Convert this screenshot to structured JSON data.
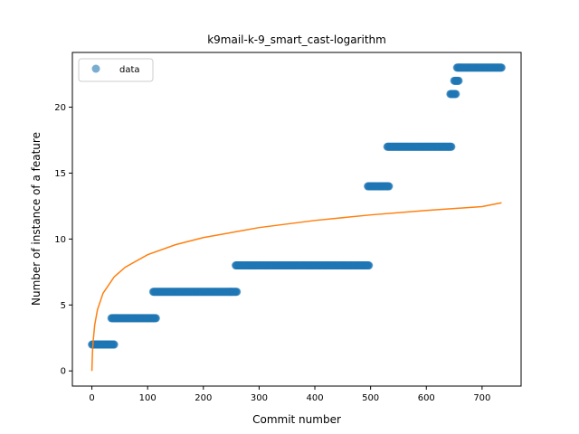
{
  "chart_data": {
    "type": "scatter",
    "title": "k9mail-k-9_smart_cast-logarithm",
    "xlabel": "Commit number",
    "ylabel": "Number of instance of a feature",
    "xlim": [
      -35,
      770
    ],
    "ylim": [
      -1.15,
      24.15
    ],
    "xticks": [
      0,
      100,
      200,
      300,
      400,
      500,
      600,
      700
    ],
    "yticks": [
      0,
      5,
      10,
      15,
      20
    ],
    "legend": {
      "position": "top-left",
      "entries": [
        "data"
      ]
    },
    "colors": {
      "data": "#1f77b4",
      "fit": "#ff7f0e"
    },
    "series": [
      {
        "name": "data",
        "kind": "scatter",
        "segments": [
          {
            "x_start": 0,
            "x_end": 40,
            "y": 2
          },
          {
            "x_start": 35,
            "x_end": 115,
            "y": 4
          },
          {
            "x_start": 110,
            "x_end": 260,
            "y": 6
          },
          {
            "x_start": 258,
            "x_end": 497,
            "y": 8
          },
          {
            "x_start": 495,
            "x_end": 533,
            "y": 14
          },
          {
            "x_start": 530,
            "x_end": 645,
            "y": 17
          },
          {
            "x_start": 643,
            "x_end": 653,
            "y": 21
          },
          {
            "x_start": 650,
            "x_end": 658,
            "y": 22
          },
          {
            "x_start": 655,
            "x_end": 735,
            "y": 23
          }
        ]
      },
      {
        "kind": "line",
        "model": "logarithmic",
        "x_range": [
          0,
          735
        ],
        "points": [
          [
            0,
            0
          ],
          [
            1,
            1.34
          ],
          [
            2,
            2.13
          ],
          [
            5,
            3.47
          ],
          [
            10,
            4.64
          ],
          [
            20,
            5.89
          ],
          [
            40,
            7.13
          ],
          [
            60,
            7.87
          ],
          [
            100,
            8.81
          ],
          [
            150,
            9.57
          ],
          [
            200,
            10.11
          ],
          [
            300,
            10.87
          ],
          [
            400,
            11.41
          ],
          [
            500,
            11.83
          ],
          [
            600,
            12.17
          ],
          [
            700,
            12.46
          ],
          [
            735,
            12.75
          ]
        ]
      }
    ]
  }
}
